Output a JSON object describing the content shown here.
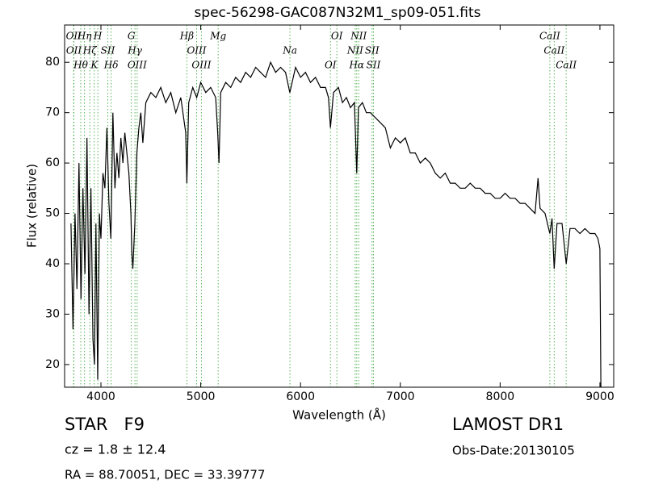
{
  "chart_data": {
    "type": "line",
    "title": "spec-56298-GAC087N32M1_sp09-051.fits",
    "xlabel": "Wavelength (Å)",
    "ylabel": "Flux (relative)",
    "xlim": [
      3636,
      9138
    ],
    "ylim": [
      15.5,
      87.4
    ],
    "xticks": [
      4000,
      5000,
      6000,
      7000,
      8000,
      9000
    ],
    "yticks": [
      20,
      30,
      40,
      50,
      60,
      70,
      80
    ],
    "grid": false,
    "line_color": "#000000",
    "marker_color": "#2ca02c",
    "annotations": [
      {
        "text": "OII",
        "x": 3727
      },
      {
        "text": "OII",
        "x": 3729
      },
      {
        "text": "Hθ",
        "x": 3798
      },
      {
        "text": "Hη",
        "x": 3835
      },
      {
        "text": "Hζ",
        "x": 3889
      },
      {
        "text": "K",
        "x": 3934
      },
      {
        "text": "H",
        "x": 3969
      },
      {
        "text": "SII",
        "x": 4069
      },
      {
        "text": "Hδ",
        "x": 4102
      },
      {
        "text": "G",
        "x": 4305
      },
      {
        "text": "Hγ",
        "x": 4341
      },
      {
        "text": "OIII",
        "x": 4363
      },
      {
        "text": "Hβ",
        "x": 4861
      },
      {
        "text": "OIII",
        "x": 4959
      },
      {
        "text": "OIII",
        "x": 5007
      },
      {
        "text": "Mg",
        "x": 5175
      },
      {
        "text": "Na",
        "x": 5894
      },
      {
        "text": "OI",
        "x": 6300
      },
      {
        "text": "OI",
        "x": 6364
      },
      {
        "text": "NII",
        "x": 6548
      },
      {
        "text": "Hα",
        "x": 6563
      },
      {
        "text": "NII",
        "x": 6583
      },
      {
        "text": "SII",
        "x": 6717
      },
      {
        "text": "SII",
        "x": 6731
      },
      {
        "text": "CaII",
        "x": 8498
      },
      {
        "text": "CaII",
        "x": 8542
      },
      {
        "text": "CaII",
        "x": 8662
      }
    ],
    "x": [
      3700,
      3720,
      3740,
      3760,
      3780,
      3800,
      3820,
      3840,
      3860,
      3880,
      3900,
      3920,
      3935,
      3950,
      3968,
      3985,
      4000,
      4020,
      4040,
      4060,
      4080,
      4100,
      4120,
      4140,
      4160,
      4180,
      4200,
      4220,
      4240,
      4260,
      4280,
      4300,
      4310,
      4320,
      4340,
      4360,
      4380,
      4400,
      4420,
      4450,
      4500,
      4550,
      4600,
      4650,
      4700,
      4750,
      4800,
      4850,
      4861,
      4880,
      4920,
      4960,
      5000,
      5050,
      5100,
      5150,
      5170,
      5183,
      5200,
      5250,
      5300,
      5350,
      5400,
      5450,
      5500,
      5550,
      5600,
      5650,
      5700,
      5750,
      5800,
      5850,
      5893,
      5950,
      6000,
      6050,
      6100,
      6150,
      6200,
      6250,
      6280,
      6300,
      6330,
      6380,
      6420,
      6460,
      6500,
      6540,
      6563,
      6580,
      6620,
      6660,
      6700,
      6750,
      6800,
      6850,
      6900,
      6950,
      7000,
      7050,
      7100,
      7150,
      7200,
      7250,
      7300,
      7350,
      7400,
      7450,
      7500,
      7550,
      7600,
      7650,
      7700,
      7750,
      7800,
      7850,
      7900,
      7950,
      8000,
      8050,
      8100,
      8150,
      8200,
      8250,
      8300,
      8350,
      8380,
      8400,
      8450,
      8498,
      8520,
      8542,
      8570,
      8620,
      8662,
      8700,
      8750,
      8800,
      8850,
      8900,
      8950,
      8980,
      9000,
      9010
    ],
    "series": [
      {
        "name": "flux",
        "values": [
          48,
          27,
          50,
          35,
          60,
          33,
          55,
          38,
          65,
          30,
          55,
          25,
          20,
          48,
          17,
          50,
          45,
          58,
          55,
          67,
          52,
          45,
          70,
          55,
          62,
          57,
          65,
          60,
          66,
          62,
          58,
          50,
          42,
          39,
          48,
          62,
          67,
          70,
          64,
          72,
          74,
          73,
          75,
          72,
          74,
          70,
          73,
          66,
          56,
          72,
          75,
          73,
          76,
          74,
          75,
          73,
          66,
          60,
          74,
          76,
          75,
          77,
          76,
          78,
          77,
          79,
          78,
          77,
          80,
          78,
          79,
          78,
          74,
          79,
          77,
          78,
          76,
          77,
          75,
          75,
          73,
          67,
          74,
          75,
          72,
          73,
          71,
          72,
          58,
          71,
          72,
          70,
          70,
          69,
          68,
          67,
          63,
          65,
          64,
          65,
          62,
          62,
          60,
          61,
          60,
          58,
          57,
          58,
          56,
          56,
          55,
          55,
          56,
          55,
          55,
          54,
          54,
          53,
          53,
          54,
          53,
          53,
          52,
          52,
          51,
          50,
          57,
          51,
          50,
          46,
          49,
          39,
          48,
          48,
          40,
          47,
          47,
          46,
          47,
          46,
          46,
          45,
          43,
          14
        ]
      }
    ]
  },
  "info": {
    "class": "STAR   F9",
    "redshift": "cz = 1.8 ± 12.4",
    "coords": "RA = 88.70051, DEC = 33.39777",
    "release": "LAMOST DR1",
    "obs_date": "Obs-Date:20130105"
  }
}
